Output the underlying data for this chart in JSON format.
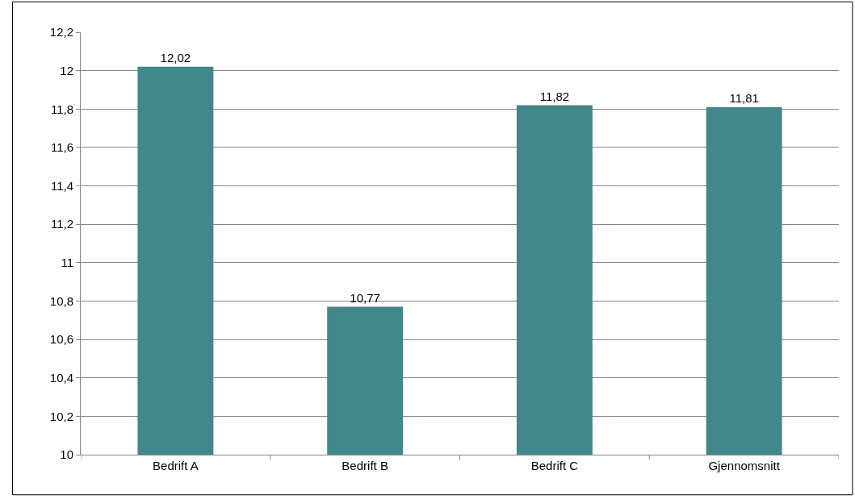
{
  "chart_data": {
    "type": "bar",
    "categories": [
      "Bedrift A",
      "Bedrift B",
      "Bedrift C",
      "Gjennomsnitt"
    ],
    "values": [
      12.02,
      10.77,
      11.82,
      11.81
    ],
    "value_labels": [
      "12,02",
      "10,77",
      "11,82",
      "11,81"
    ],
    "color": "#41878b",
    "ylim": [
      10,
      12.2
    ],
    "yticks": [
      10,
      {
        "value": 10.2,
        "label": "10,2"
      },
      {
        "value": 10.4,
        "label": "10,4"
      },
      {
        "value": 10.6,
        "label": "10,6"
      },
      {
        "value": 10.8,
        "label": "10,8"
      },
      11,
      {
        "value": 11.2,
        "label": "11,2"
      },
      {
        "value": 11.4,
        "label": "11,4"
      },
      {
        "value": 11.6,
        "label": "11,6"
      },
      {
        "value": 11.8,
        "label": "11,8"
      },
      12,
      {
        "value": 12.2,
        "label": "12,2"
      }
    ],
    "grid": "y"
  }
}
